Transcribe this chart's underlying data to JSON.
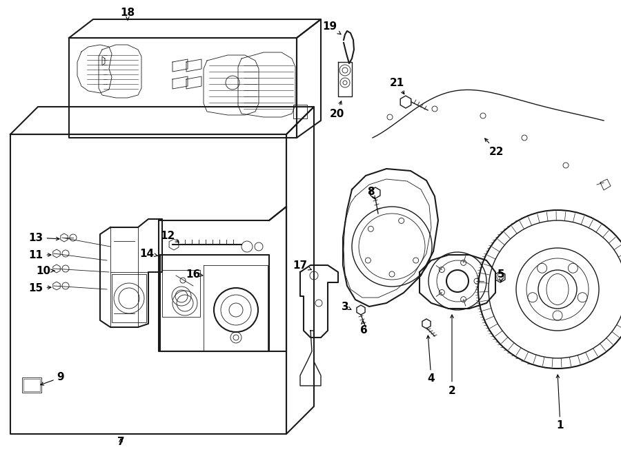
{
  "bg_color": "#ffffff",
  "line_color": "#1a1a1a",
  "lw": 1.0,
  "lw_thick": 1.5,
  "lw_thin": 0.6,
  "fontsize": 11
}
